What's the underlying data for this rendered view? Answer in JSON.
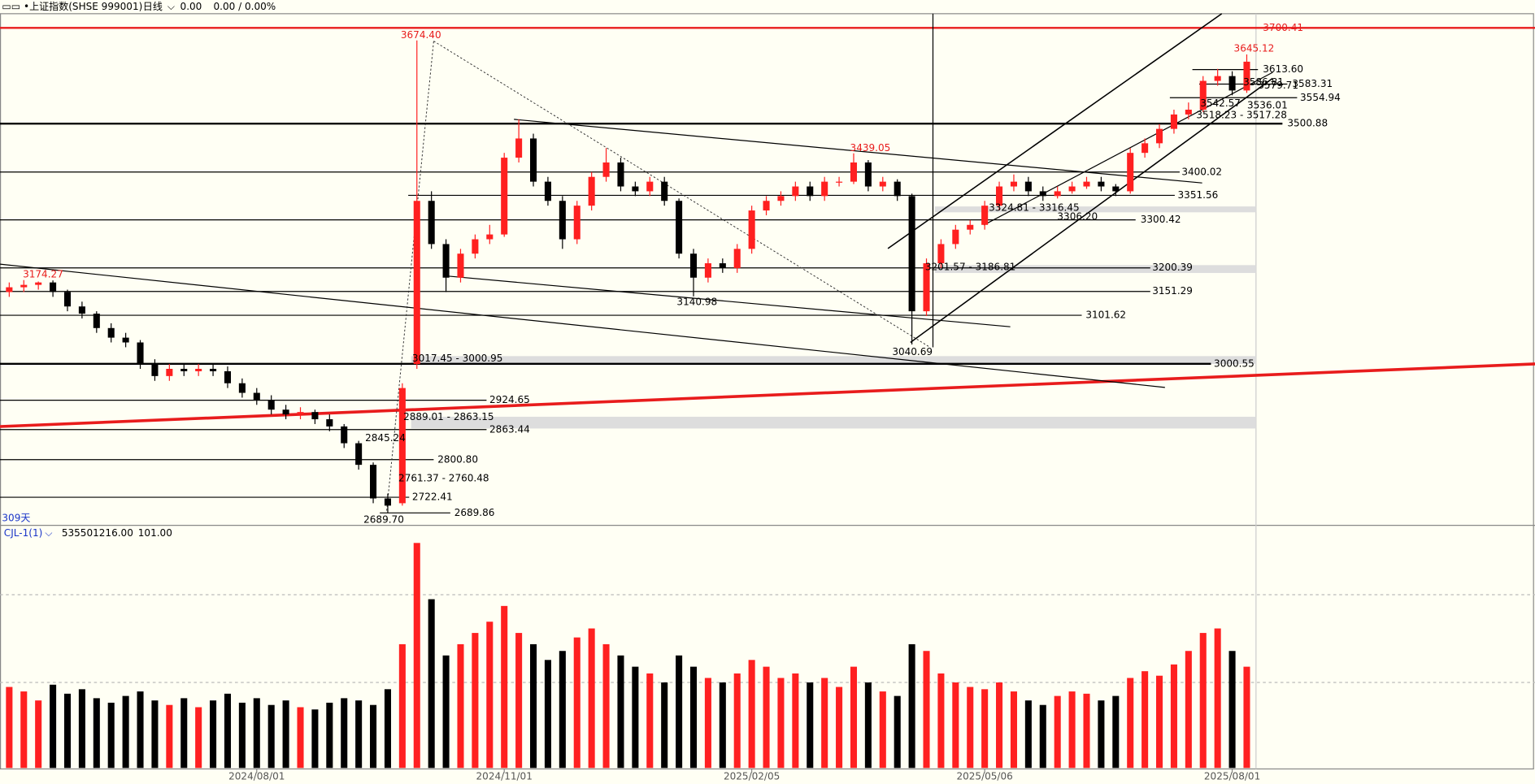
{
  "header": {
    "symbol": "上证指数(SHSE 999001)",
    "period": "日线",
    "price": "0.00",
    "change": "0.00 / 0.00%",
    "span_label": "309天"
  },
  "chart_data": [
    {
      "type": "candlestick",
      "up_color": "#ff2020",
      "down_color": "#000000",
      "categories": [
        null,
        null,
        null,
        null,
        null,
        null,
        null,
        null,
        null,
        null,
        null,
        null,
        null,
        null,
        null,
        null,
        null,
        "2024/08/01",
        null,
        null,
        null,
        null,
        null,
        null,
        null,
        null,
        null,
        null,
        null,
        null,
        null,
        null,
        null,
        null,
        "2024/11/01",
        null,
        null,
        null,
        null,
        null,
        null,
        null,
        null,
        null,
        null,
        null,
        null,
        null,
        null,
        null,
        null,
        "2025/02/05",
        null,
        null,
        null,
        null,
        null,
        null,
        null,
        null,
        null,
        null,
        null,
        null,
        null,
        null,
        null,
        "2025/05/06",
        null,
        null,
        null,
        null,
        null,
        null,
        null,
        null,
        null,
        null,
        null,
        null,
        null,
        null,
        null,
        null,
        "2025/08/01",
        null
      ],
      "open": [
        3150,
        3160,
        3165,
        3170,
        3150,
        3120,
        3105,
        3075,
        3055,
        3045,
        3000,
        2975,
        2990,
        2985,
        2990,
        2985,
        2960,
        2940,
        2925,
        2905,
        2895,
        2900,
        2885,
        2870,
        2835,
        2790,
        2720,
        2710,
        3000,
        3340,
        3250,
        3180,
        3230,
        3260,
        3270,
        3430,
        3470,
        3380,
        3340,
        3260,
        3330,
        3390,
        3420,
        3370,
        3360,
        3380,
        3340,
        3230,
        3180,
        3210,
        3200,
        3240,
        3320,
        3340,
        3350,
        3370,
        3350,
        3380,
        3380,
        3420,
        3370,
        3380,
        3350,
        3110,
        3210,
        3250,
        3280,
        3290,
        3330,
        3370,
        3380,
        3360,
        3350,
        3360,
        3370,
        3380,
        3370,
        3360,
        3440,
        3460,
        3490,
        3520,
        3530,
        3590,
        3600,
        3570
      ],
      "high": [
        3170,
        3175,
        3172,
        3174.27,
        3155,
        3130,
        3110,
        3085,
        3065,
        3050,
        3010,
        3000,
        3000,
        3000,
        3000,
        2995,
        2970,
        2950,
        2935,
        2915,
        2910,
        2905,
        2895,
        2875,
        2840,
        2795,
        2730,
        2960,
        3674.4,
        3360,
        3260,
        3240,
        3270,
        3290,
        3440,
        3510,
        3480,
        3390,
        3350,
        3340,
        3400,
        3450,
        3430,
        3380,
        3390,
        3390,
        3345,
        3240,
        3220,
        3220,
        3250,
        3330,
        3350,
        3360,
        3380,
        3380,
        3390,
        3390,
        3439.05,
        3425,
        3390,
        3385,
        3355,
        3220,
        3260,
        3290,
        3300,
        3340,
        3380,
        3395,
        3390,
        3370,
        3370,
        3380,
        3390,
        3390,
        3375,
        3450,
        3470,
        3500,
        3530,
        3545,
        3600,
        3615,
        3610,
        3645.12
      ],
      "low": [
        3140,
        3150,
        3155,
        3140,
        3110,
        3095,
        3065,
        3045,
        3035,
        2990,
        2965,
        2965,
        2975,
        2975,
        2975,
        2950,
        2930,
        2915,
        2895,
        2885,
        2885,
        2875,
        2860,
        2825,
        2780,
        2710,
        2689.7,
        2705,
        2990,
        3240,
        3150,
        3170,
        3220,
        3250,
        3265,
        3420,
        3370,
        3330,
        3240,
        3250,
        3320,
        3380,
        3360,
        3350,
        3350,
        3330,
        3220,
        3140.98,
        3170,
        3190,
        3190,
        3230,
        3310,
        3330,
        3340,
        3340,
        3340,
        3370,
        3375,
        3360,
        3360,
        3340,
        3040.69,
        3100,
        3200,
        3240,
        3270,
        3280,
        3320,
        3360,
        3350,
        3340,
        3345,
        3355,
        3365,
        3360,
        3350,
        3355,
        3430,
        3450,
        3480,
        3510,
        3525,
        3580,
        3560,
        3565
      ],
      "close": [
        3160,
        3165,
        3170,
        3150,
        3120,
        3105,
        3075,
        3055,
        3045,
        3000,
        2975,
        2990,
        2985,
        2990,
        2985,
        2960,
        2940,
        2925,
        2905,
        2895,
        2900,
        2885,
        2870,
        2835,
        2790,
        2720,
        2705,
        2950,
        3340,
        3250,
        3180,
        3230,
        3260,
        3270,
        3430,
        3470,
        3380,
        3340,
        3260,
        3330,
        3390,
        3420,
        3370,
        3360,
        3380,
        3340,
        3230,
        3180,
        3210,
        3200,
        3240,
        3320,
        3340,
        3350,
        3370,
        3350,
        3380,
        3380,
        3420,
        3370,
        3380,
        3350,
        3110,
        3210,
        3250,
        3280,
        3290,
        3330,
        3370,
        3380,
        3360,
        3350,
        3360,
        3370,
        3380,
        3370,
        3360,
        3440,
        3460,
        3490,
        3520,
        3530,
        3590,
        3600,
        3570,
        3630
      ],
      "ylim": [
        2668,
        3730
      ],
      "levels": [
        {
          "value": 3700.41,
          "label": "3700.41",
          "color": "#e81c1c"
        },
        {
          "value": 3613.6,
          "label": "3613.60",
          "color": "#000000"
        },
        {
          "value": 3583.31,
          "label": "3583.31",
          "color": "#000000"
        },
        {
          "value": 3554.94,
          "label": "3554.94",
          "color": "#000000"
        },
        {
          "value": 3500.88,
          "label": "3500.88",
          "color": "#000000"
        },
        {
          "value": 3400.02,
          "label": "3400.02",
          "color": "#000000"
        },
        {
          "value": 3351.56,
          "label": "3351.56",
          "color": "#000000"
        },
        {
          "value": 3300.42,
          "label": "3300.42",
          "color": "#000000"
        },
        {
          "value": 3200.39,
          "label": "3200.39",
          "color": "#000000"
        },
        {
          "value": 3151.29,
          "label": "3151.29",
          "color": "#000000"
        },
        {
          "value": 3101.62,
          "label": "3101.62",
          "color": "#000000"
        },
        {
          "value": 3000.55,
          "label": "3000.55",
          "color": "#000000"
        },
        {
          "value": 2924.65,
          "label": "2924.65",
          "color": "#000000"
        },
        {
          "value": 2863.44,
          "label": "2863.44",
          "color": "#000000"
        },
        {
          "value": 2800.8,
          "label": "2800.80",
          "color": "#000000"
        },
        {
          "value": 2722.41,
          "label": "2722.41",
          "color": "#000000"
        },
        {
          "value": 2689.86,
          "label": "2689.86",
          "color": "#000000"
        }
      ],
      "annotations": [
        {
          "value": 3674.4,
          "label": "3674.40",
          "color": "#e81c1c"
        },
        {
          "value": 3645.12,
          "label": "3645.12",
          "color": "#e81c1c"
        },
        {
          "value": 3439.05,
          "label": "3439.05",
          "color": "#e81c1c"
        },
        {
          "value": 3174.27,
          "label": "3174.27",
          "color": "#e81c1c"
        },
        {
          "value": 3140.98,
          "label": "3140.98",
          "color": "#000000"
        },
        {
          "value": 3040.69,
          "label": "3040.69",
          "color": "#000000"
        },
        {
          "value": 2689.7,
          "label": "2689.70",
          "color": "#000000"
        },
        {
          "value": 3201.57,
          "label": "3201.57 - 3186.81",
          "color": "#000000"
        },
        {
          "value": 3324.81,
          "label": "3324.81 - 3316.45",
          "color": "#000000"
        },
        {
          "value": 3306.2,
          "label": "3306.20",
          "color": "#000000"
        },
        {
          "value": 3542.57,
          "label": "3542.57",
          "color": "#000000"
        },
        {
          "value": 3536.01,
          "label": "3536.01",
          "color": "#000000"
        },
        {
          "value": 3518.23,
          "label": "3518.23 - 3517.28",
          "color": "#000000"
        },
        {
          "value": 3586.81,
          "label": "3586.81",
          "color": "#000000"
        },
        {
          "value": 3579.71,
          "label": "3579.71",
          "color": "#000000"
        },
        {
          "value": 3017.45,
          "label": "3017.45 - 3000.95",
          "color": "#000000"
        },
        {
          "value": 2889.01,
          "label": "2889.01 - 2863.15",
          "color": "#000000"
        },
        {
          "value": 2845.24,
          "label": "2845.24",
          "color": "#000000"
        },
        {
          "value": 2761.37,
          "label": "2761.37 - 2760.48",
          "color": "#000000"
        }
      ]
    },
    {
      "type": "bar",
      "indicator": "CJL-1(1)",
      "readouts": [
        "535501216.00",
        "101.00"
      ],
      "values": [
        36,
        34,
        30,
        37,
        33,
        35,
        31,
        29,
        32,
        34,
        30,
        28,
        31,
        27,
        30,
        33,
        29,
        31,
        28,
        30,
        27,
        26,
        29,
        31,
        30,
        28,
        35,
        55,
        100,
        75,
        50,
        55,
        60,
        65,
        72,
        60,
        55,
        48,
        52,
        58,
        62,
        55,
        50,
        45,
        42,
        38,
        50,
        45,
        40,
        38,
        42,
        48,
        45,
        40,
        42,
        38,
        40,
        36,
        45,
        38,
        34,
        32,
        55,
        52,
        42,
        38,
        36,
        35,
        38,
        34,
        30,
        28,
        32,
        34,
        33,
        30,
        32,
        40,
        43,
        41,
        46,
        52,
        60,
        62,
        52,
        45
      ],
      "ylim": [
        0,
        100
      ],
      "yticks": [
        38,
        77
      ]
    }
  ]
}
